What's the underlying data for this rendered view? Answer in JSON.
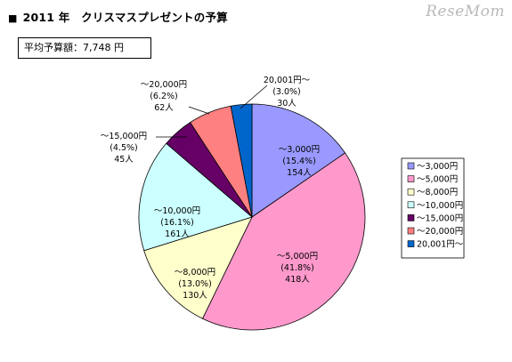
{
  "header": {
    "square": "■",
    "title": "2011 年　クリスマスプレゼントの予算",
    "watermark": "ReseMom"
  },
  "summary": {
    "average_label": "平均予算額：7,748 円"
  },
  "chart_data": {
    "type": "pie",
    "title": "2011 年　クリスマスプレゼントの予算",
    "categories": [
      "～3,000円",
      "～5,000円",
      "～8,000円",
      "～10,000円",
      "～15,000円",
      "～20,000円",
      "20,001円～"
    ],
    "values": [
      154,
      418,
      130,
      161,
      45,
      62,
      30
    ],
    "percent_labels": [
      "(15.4%)",
      "(41.8%)",
      "(13.0%)",
      "(16.1%)",
      "(4.5%)",
      "(6.2%)",
      "(3.0%)"
    ],
    "count_labels": [
      "154人",
      "418人",
      "130人",
      "161人",
      "45人",
      "62人",
      "30人"
    ],
    "colors": [
      "#9999ff",
      "#ff99cc",
      "#ffffcc",
      "#ccffff",
      "#660066",
      "#ff8080",
      "#0066cc"
    ],
    "start_angle_deg": 0,
    "direction": "clockwise",
    "legend": {
      "placement": "right",
      "entries": [
        "～3,000円",
        "～5,000円",
        "～8,000円",
        "～10,000円",
        "～15,000円",
        "～20,000円",
        "20,001円～"
      ]
    }
  }
}
